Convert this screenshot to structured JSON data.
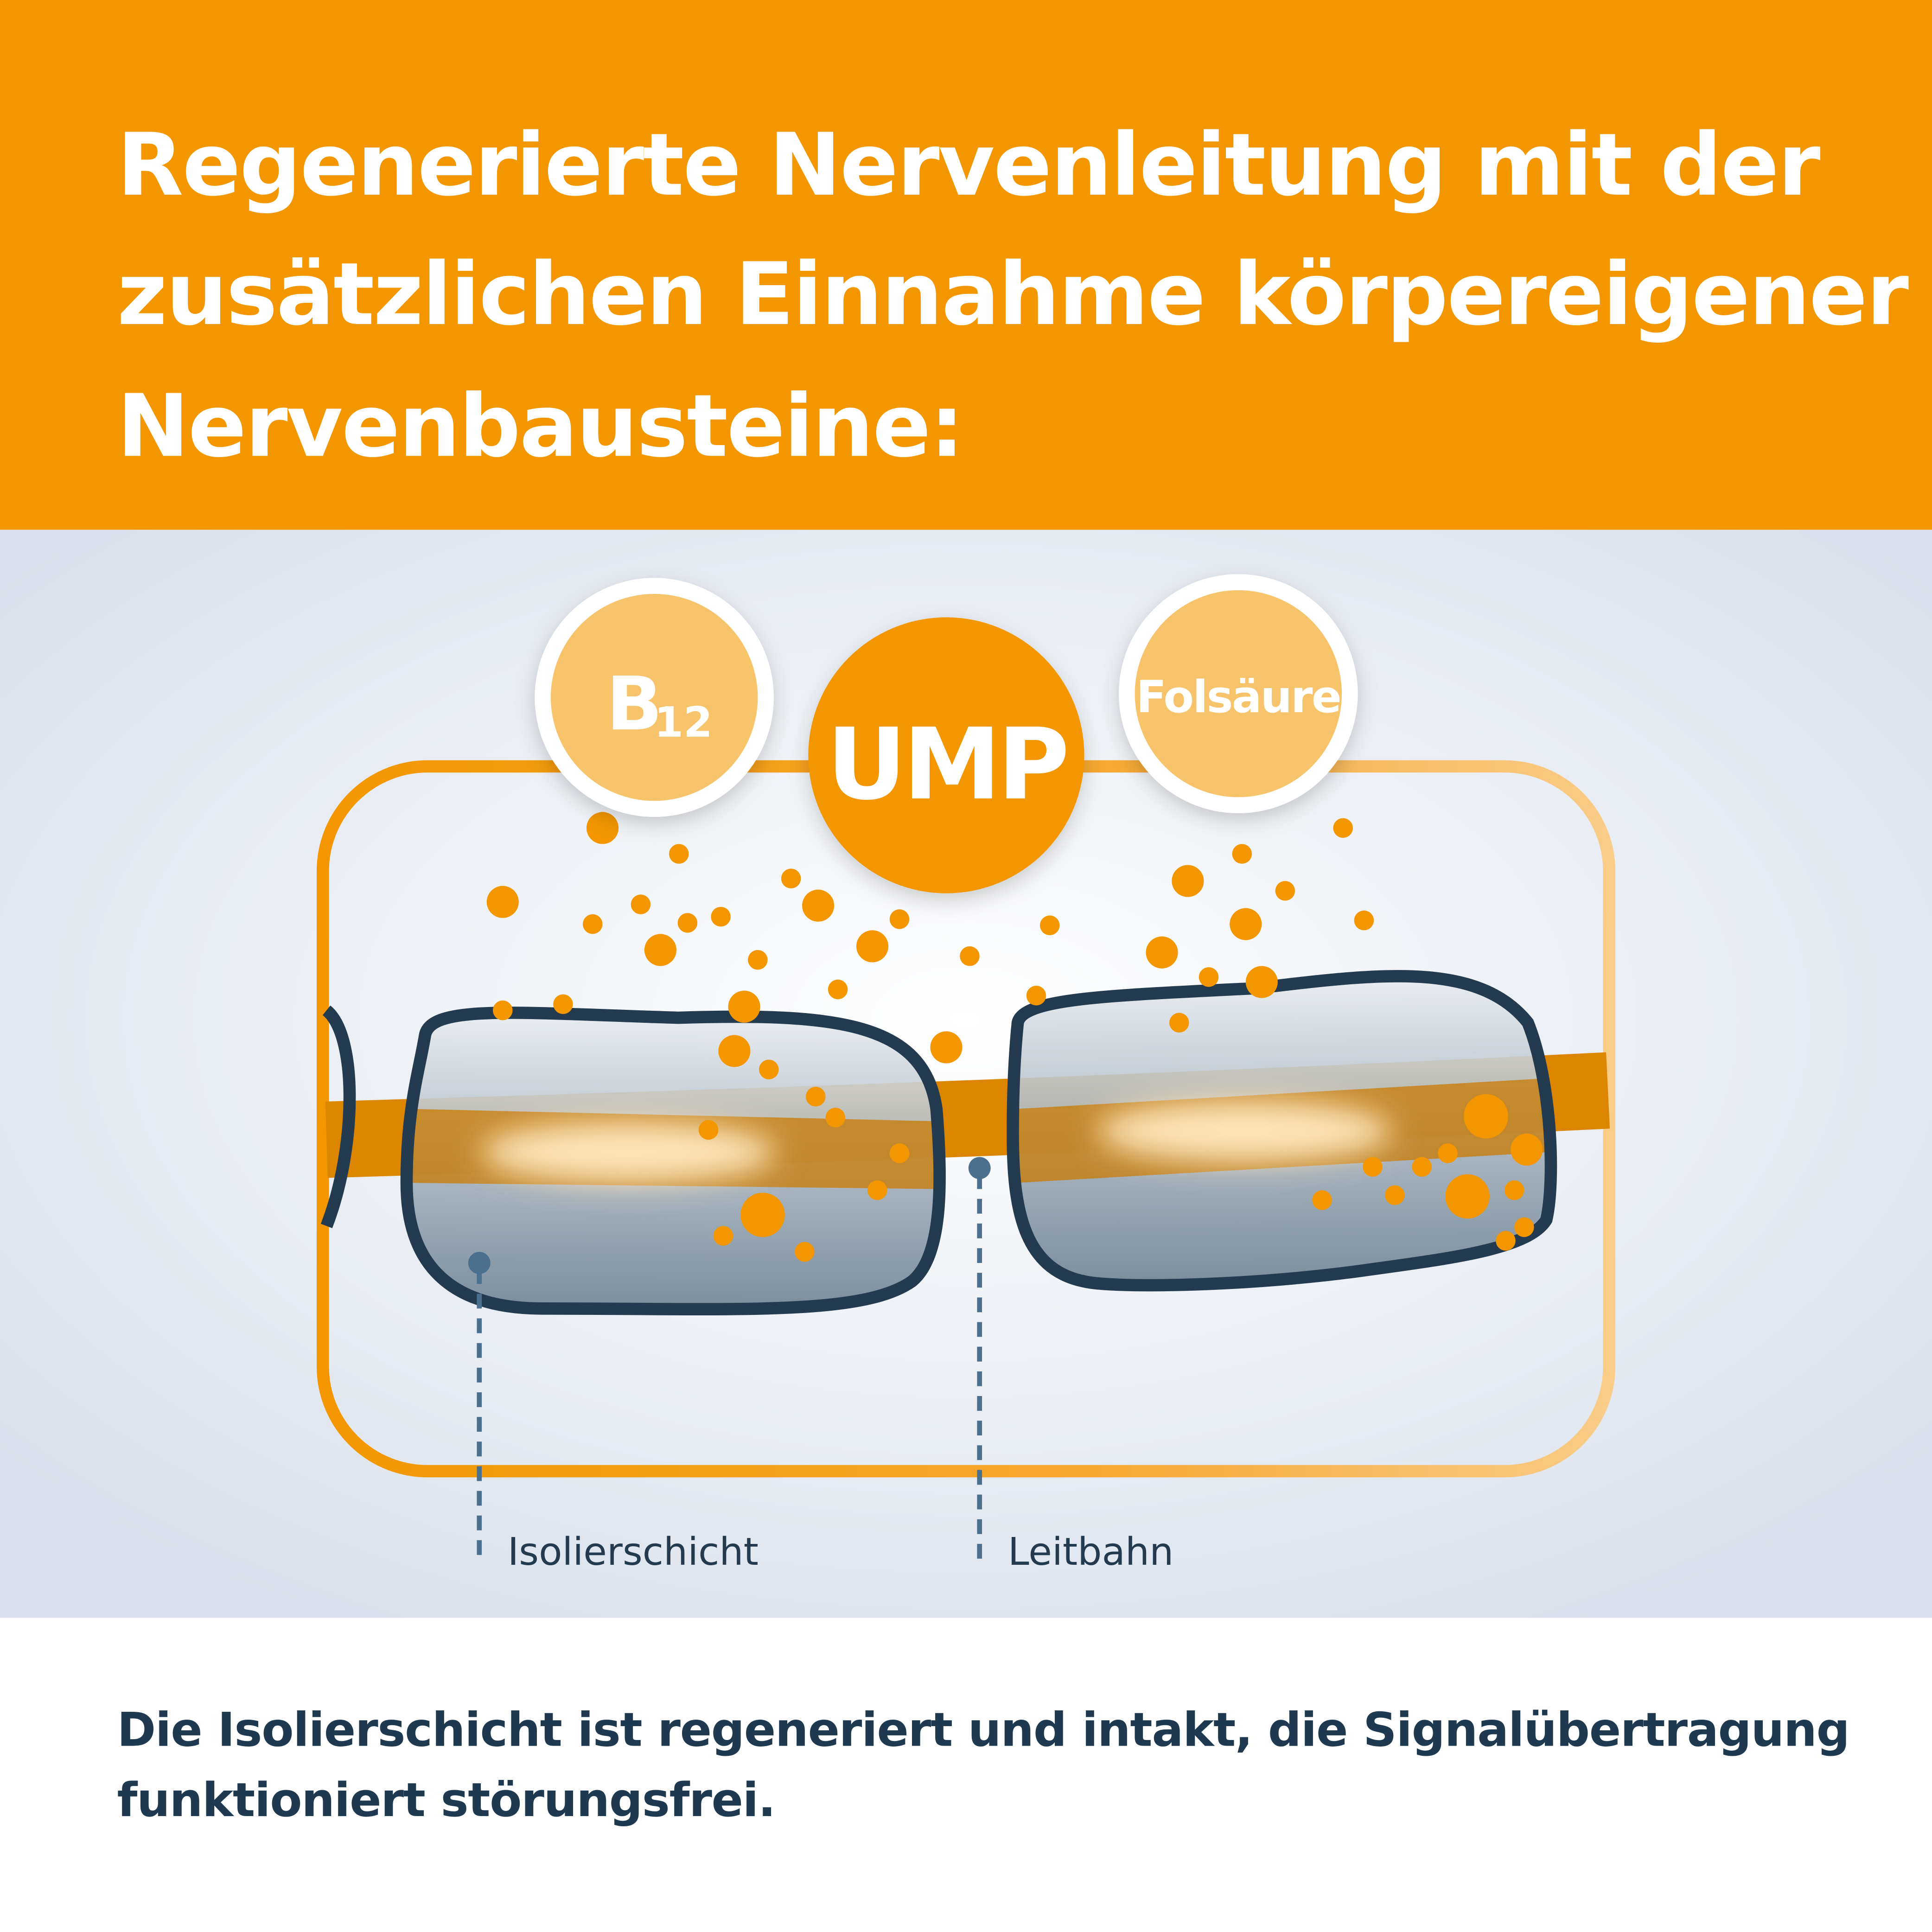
{
  "header": {
    "title_lines": [
      "Regenerierte Nervenleitung mit der",
      "zusätzlichen Einnahme körpereigener",
      "Nervenbausteine:"
    ],
    "background_color": "#F39600"
  },
  "diagram": {
    "nutrients": {
      "b12": {
        "main": "B",
        "sub": "12"
      },
      "ump": "UMP",
      "folsaeure": "Folsäure"
    },
    "labels": {
      "insulation": "Isolierschicht",
      "pathway": "Leitbahn"
    },
    "colors": {
      "orange": "#F39600",
      "light_orange": "#F7C46C",
      "dark": "#243B4F",
      "marker": "#4A6F8F"
    }
  },
  "caption": {
    "lines": [
      "Die Isolierschicht ist regeneriert und intakt, die Signalübertragung",
      "funktioniert störungsfrei."
    ]
  }
}
